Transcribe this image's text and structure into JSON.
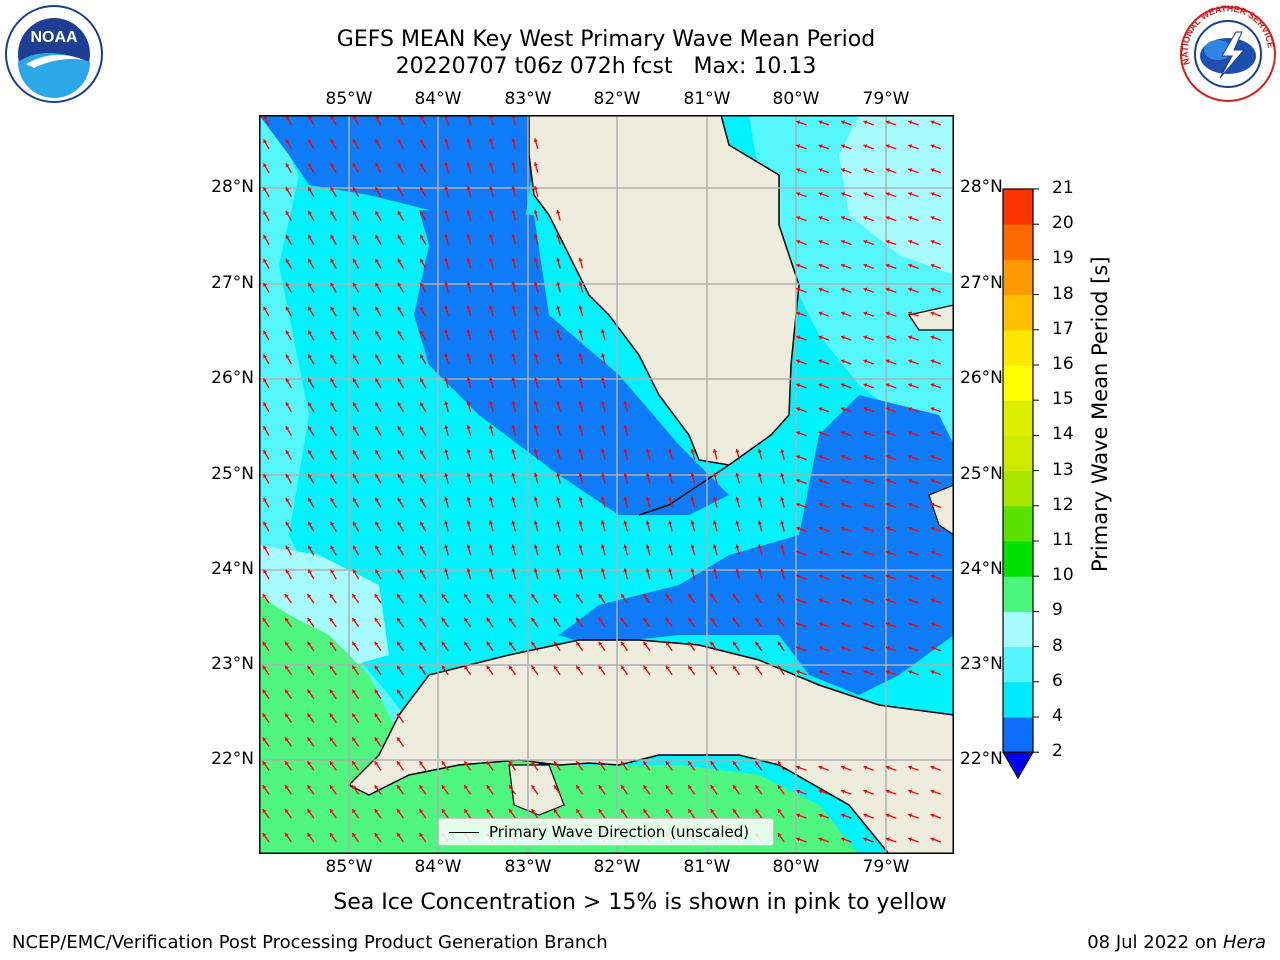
{
  "header": {
    "title_line1": "GEFS MEAN Key West Primary Wave Mean Period",
    "title_line2": "20220707 t06z 072h fcst   Max: 10.13"
  },
  "logos": {
    "left": {
      "icon": "noaa-logo-icon",
      "text": "NOAA"
    },
    "right": {
      "icon": "nws-logo-icon",
      "text": "NATIONAL WEATHER SERVICE"
    }
  },
  "map": {
    "lon_ticks": [
      "85°W",
      "84°W",
      "83°W",
      "82°W",
      "81°W",
      "80°W",
      "79°W"
    ],
    "lat_ticks": [
      "28°N",
      "27°N",
      "26°N",
      "25°N",
      "24°N",
      "23°N",
      "22°N"
    ],
    "legend_label": "Primary Wave Direction (unscaled)",
    "colors": {
      "land": "#eeecdc",
      "band_2_4": "#0e7cf8",
      "band_4_6": "#00f2fc",
      "band_6_8": "#55f7fc",
      "band_8_9": "#a8fbfc",
      "band_9_10": "#4ff780",
      "below_2": "#0000e8",
      "arrow": "#ff0000"
    }
  },
  "colorbar": {
    "title": "Primary Wave Mean Period [s]",
    "ticks": [
      "2",
      "4",
      "6",
      "8",
      "9",
      "10",
      "11",
      "12",
      "13",
      "14",
      "15",
      "16",
      "17",
      "18",
      "19",
      "20",
      "21"
    ],
    "segment_colors": [
      "#0d6ef9",
      "#01e9fd",
      "#55f5fe",
      "#a7fbff",
      "#4af57c",
      "#00e100",
      "#59e200",
      "#a8e600",
      "#cceb00",
      "#dcef00",
      "#ffff00",
      "#ffe600",
      "#ffc000",
      "#ff9900",
      "#ff6a00",
      "#ff3400",
      "#ff0000"
    ],
    "extend_color": "#0000f0"
  },
  "footer": {
    "note": "Sea Ice Concentration > 15% is shown in pink to yellow",
    "credit": "NCEP/EMC/Verification Post Processing Product Generation Branch",
    "date_prefix": "08 Jul 2022 on ",
    "host": "Hera"
  }
}
